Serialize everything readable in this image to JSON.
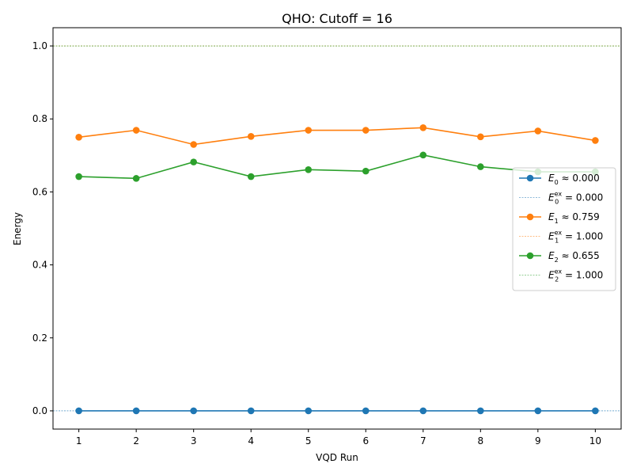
{
  "chart_data": {
    "type": "line",
    "title": "QHO: Cutoff = 16",
    "xlabel": "VQD Run",
    "ylabel": "Energy",
    "x": [
      1,
      2,
      3,
      4,
      5,
      6,
      7,
      8,
      9,
      10
    ],
    "xlim": [
      0.55,
      10.45
    ],
    "ylim": [
      -0.05,
      1.05
    ],
    "yticks": [
      0.0,
      0.2,
      0.4,
      0.6,
      0.8,
      1.0
    ],
    "ytick_labels": [
      "0.0",
      "0.2",
      "0.4",
      "0.6",
      "0.8",
      "1.0"
    ],
    "xtick_labels": [
      "1",
      "2",
      "3",
      "4",
      "5",
      "6",
      "7",
      "8",
      "9",
      "10"
    ],
    "grid": false,
    "legend_position": "center-right",
    "series": [
      {
        "name": "E0 ≈ 0.000",
        "label_symbol": "E",
        "label_sub": "0",
        "label_rest": " ≈ 0.000",
        "color": "#1f77b4",
        "values": [
          0.0,
          0.0,
          0.0,
          0.0,
          0.0,
          0.0,
          0.0,
          0.0,
          0.0,
          0.0
        ],
        "exact": 0.0,
        "exact_label_symbol": "E",
        "exact_label_sup": "ex",
        "exact_label_sub": "0",
        "exact_label_rest": " = 0.000"
      },
      {
        "name": "E1 ≈ 0.759",
        "label_symbol": "E",
        "label_sub": "1",
        "label_rest": " ≈ 0.759",
        "color": "#ff7f0e",
        "values": [
          0.75,
          0.769,
          0.73,
          0.752,
          0.769,
          0.769,
          0.776,
          0.751,
          0.767,
          0.741
        ],
        "exact": 1.0,
        "exact_label_symbol": "E",
        "exact_label_sup": "ex",
        "exact_label_sub": "1",
        "exact_label_rest": " = 1.000"
      },
      {
        "name": "E2 ≈ 0.655",
        "label_symbol": "E",
        "label_sub": "2",
        "label_rest": " ≈ 0.655",
        "color": "#2ca02c",
        "values": [
          0.642,
          0.637,
          0.682,
          0.642,
          0.661,
          0.657,
          0.701,
          0.669,
          0.655,
          0.655
        ],
        "exact": 1.0,
        "exact_label_symbol": "E",
        "exact_label_sup": "ex",
        "exact_label_sub": "2",
        "exact_label_rest": " = 1.000"
      }
    ]
  }
}
